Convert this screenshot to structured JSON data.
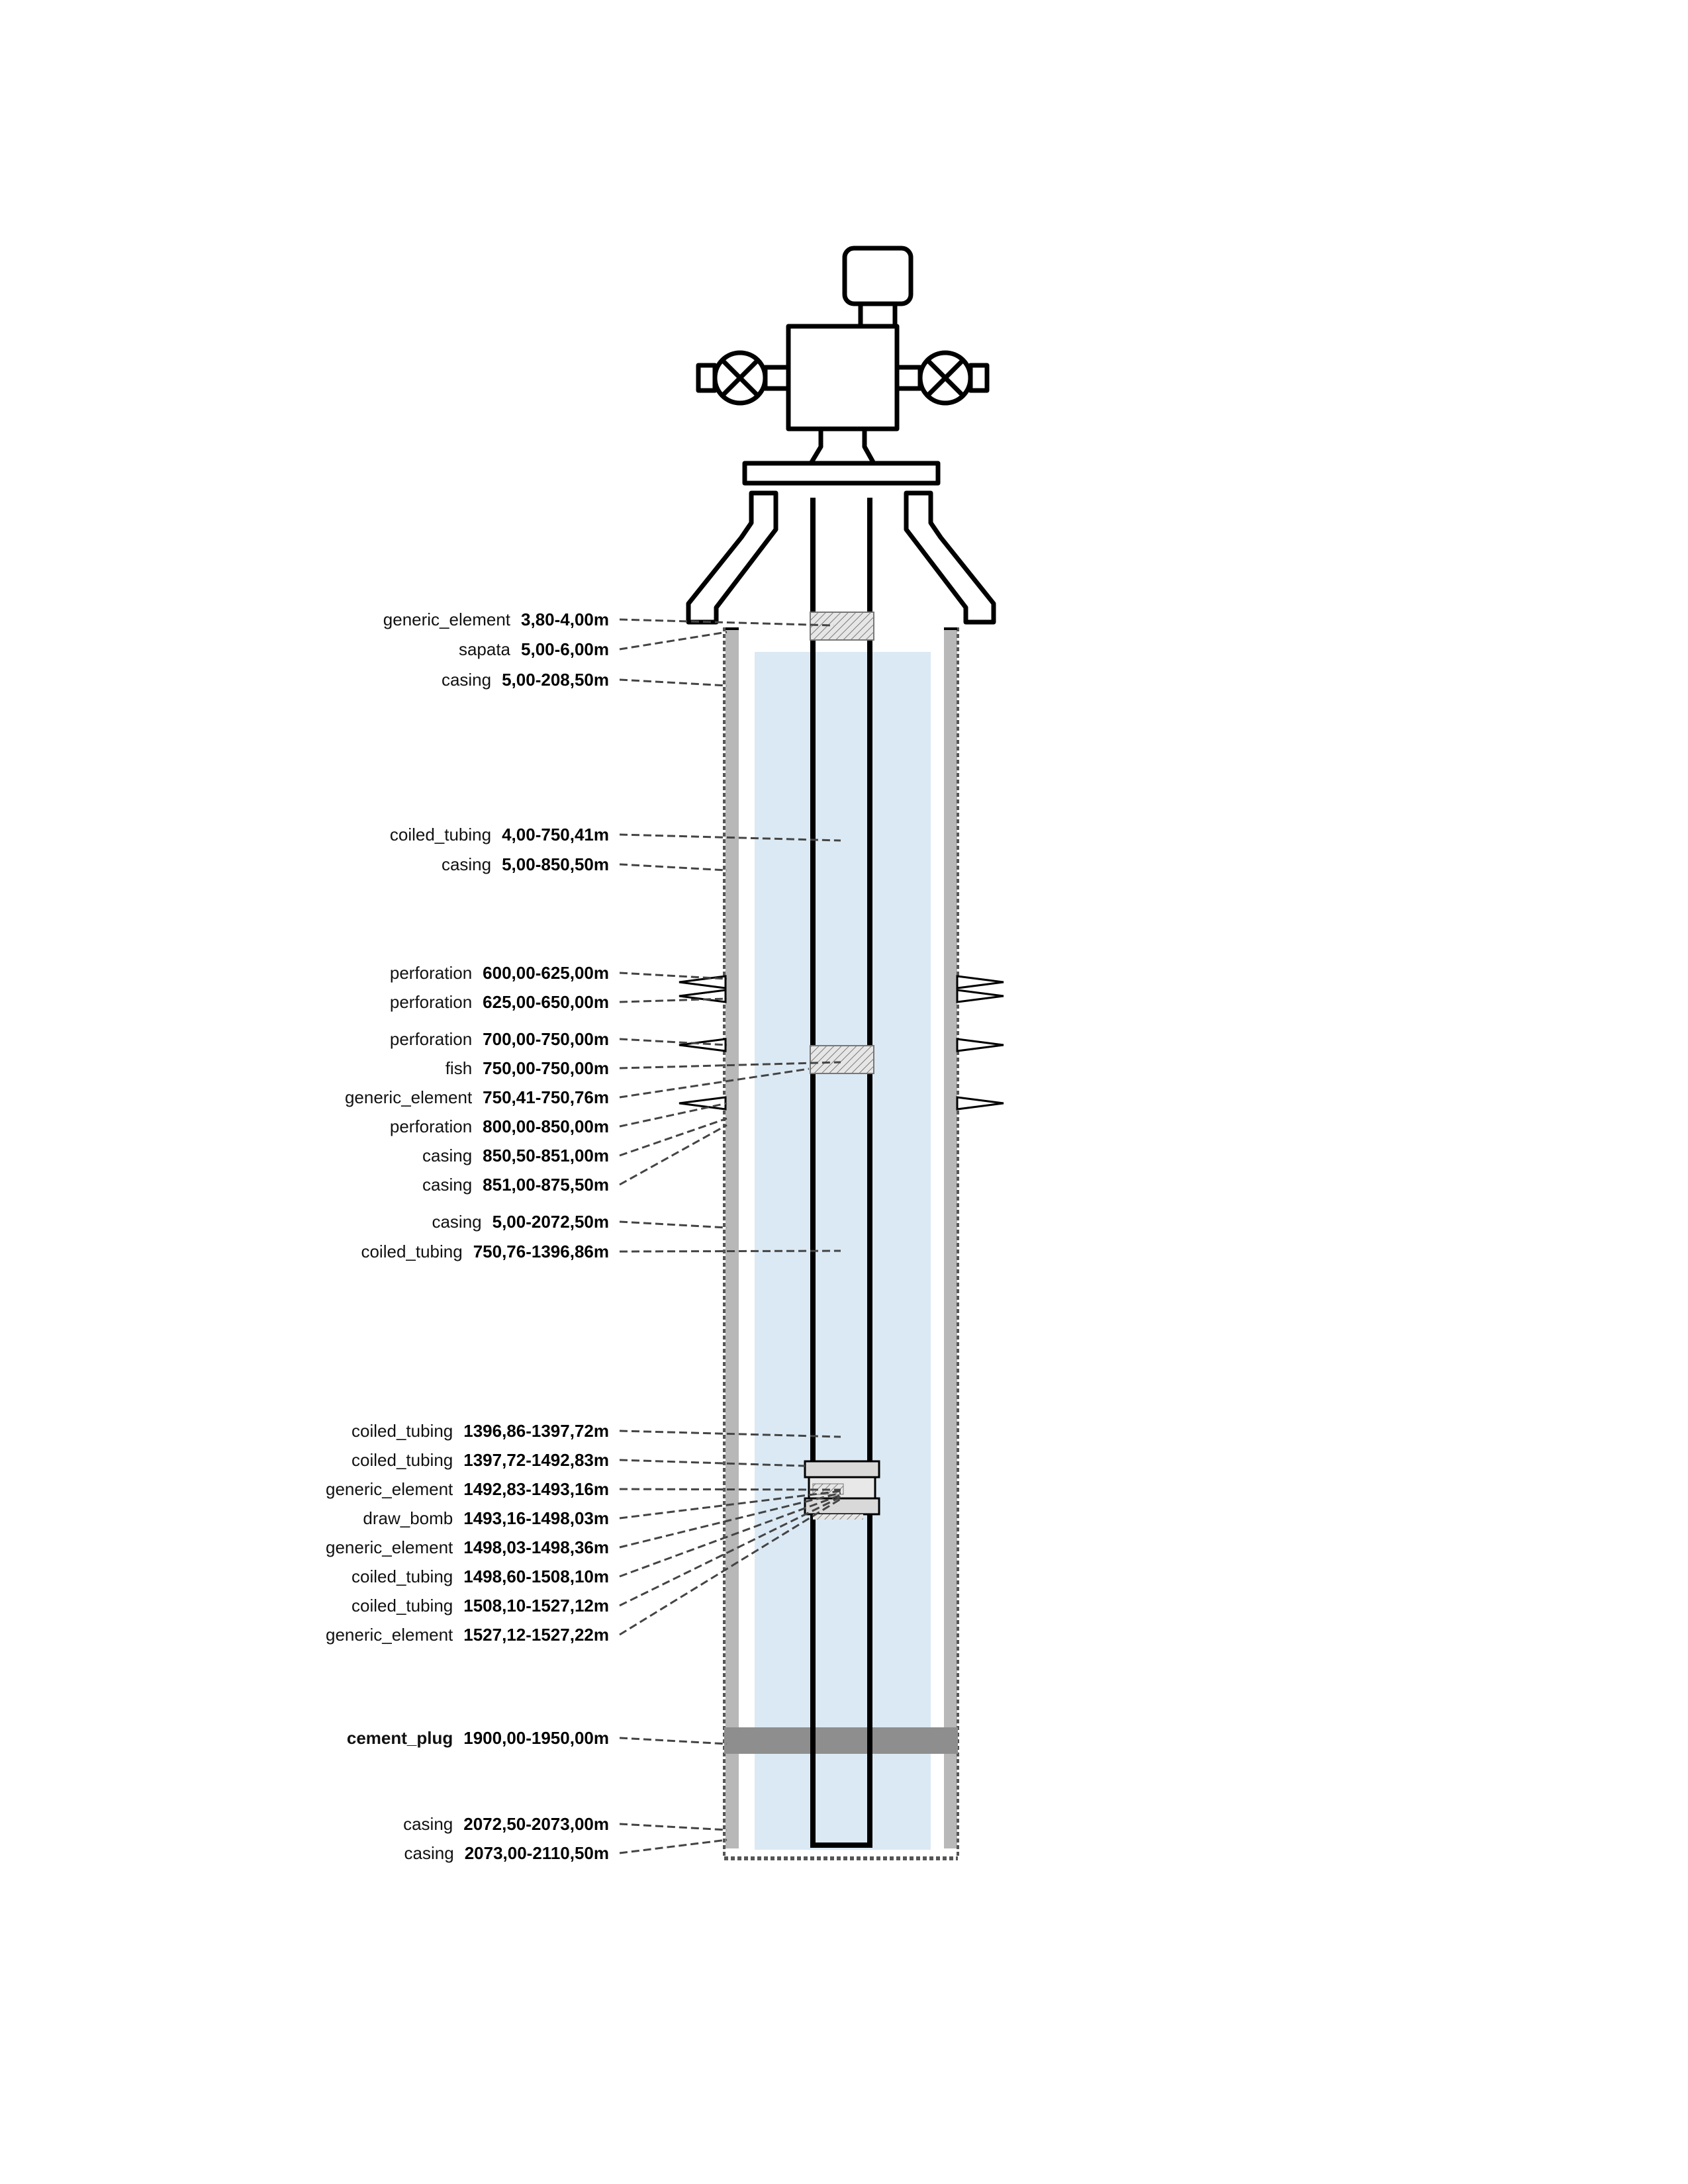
{
  "labels": [
    {
      "name": "generic_element",
      "depth": "3,80-4,00m"
    },
    {
      "name": "sapata",
      "depth": "5,00-6,00m"
    },
    {
      "name": "casing",
      "depth": "5,00-208,50m"
    },
    {
      "name": "coiled_tubing",
      "depth": "4,00-750,41m"
    },
    {
      "name": "casing",
      "depth": "5,00-850,50m"
    },
    {
      "name": "perforation",
      "depth": "600,00-625,00m"
    },
    {
      "name": "perforation",
      "depth": "625,00-650,00m"
    },
    {
      "name": "perforation",
      "depth": "700,00-750,00m"
    },
    {
      "name": "fish",
      "depth": "750,00-750,00m"
    },
    {
      "name": "generic_element",
      "depth": "750,41-750,76m"
    },
    {
      "name": "perforation",
      "depth": "800,00-850,00m"
    },
    {
      "name": "casing",
      "depth": "850,50-851,00m"
    },
    {
      "name": "casing",
      "depth": "851,00-875,50m"
    },
    {
      "name": "casing",
      "depth": "5,00-2072,50m"
    },
    {
      "name": "coiled_tubing",
      "depth": "750,76-1396,86m"
    },
    {
      "name": "coiled_tubing",
      "depth": "1396,86-1397,72m"
    },
    {
      "name": "coiled_tubing",
      "depth": "1397,72-1492,83m"
    },
    {
      "name": "generic_element",
      "depth": "1492,83-1493,16m"
    },
    {
      "name": "draw_bomb",
      "depth": "1493,16-1498,03m"
    },
    {
      "name": "generic_element",
      "depth": "1498,03-1498,36m"
    },
    {
      "name": "coiled_tubing",
      "depth": "1498,60-1508,10m"
    },
    {
      "name": "coiled_tubing",
      "depth": "1508,10-1527,12m"
    },
    {
      "name": "generic_element",
      "depth": "1527,12-1527,22m"
    },
    {
      "name": "cement_plug",
      "depth": "1900,00-1950,00m"
    },
    {
      "name": "casing",
      "depth": "2072,50-2073,00m"
    },
    {
      "name": "casing",
      "depth": "2073,00-2110,50m"
    }
  ],
  "colors": {
    "fluid": "#dbe9f4",
    "casing_wall": "#b8b8b8",
    "cement_plug": "#8e8e8e",
    "tubing": "#000000",
    "tool": "#d9d9d9",
    "leader": "#444444"
  },
  "icons": {
    "wellhead": "wellhead-christmas-tree-icon",
    "valve": "gate-valve-icon"
  }
}
